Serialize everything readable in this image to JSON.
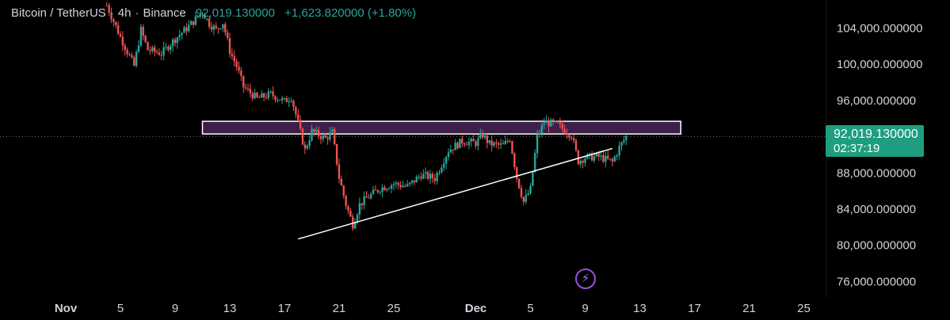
{
  "header": {
    "symbol": "Bitcoin / TetherUS",
    "interval": "4h",
    "exchange": "Binance",
    "last_price": "92,019.130000",
    "change": "+1,623.820000 (+1.80%)"
  },
  "price_tag": {
    "value": "92,019.130000",
    "countdown": "02:37:19"
  },
  "colors": {
    "up": "#26a69a",
    "down": "#ef5350",
    "zone_fill": "#3d1f4a",
    "zone_border": "#ffffff",
    "trendline": "#ffffff",
    "price_tag": "#1f9d80",
    "alert_icon": "#9c4fd7"
  },
  "chart_data": {
    "type": "candlestick",
    "y_axis_labels": [
      "104,000.000000",
      "100,000.000000",
      "96,000.000000",
      "88,000.000000",
      "84,000.000000",
      "80,000.000000",
      "76,000.000000"
    ],
    "y_axis_values": [
      104000,
      100000,
      96000,
      88000,
      84000,
      80000,
      76000
    ],
    "ylim": [
      74200,
      107100
    ],
    "x_axis_labels": [
      "Nov",
      "5",
      "9",
      "13",
      "17",
      "21",
      "25",
      "Dec",
      "5",
      "9",
      "13",
      "17",
      "21",
      "25"
    ],
    "x_axis_dates": [
      "2024-11-01",
      "2024-11-05",
      "2024-11-09",
      "2024-11-13",
      "2024-11-17",
      "2024-11-21",
      "2024-11-25",
      "2024-12-01",
      "2024-12-05",
      "2024-12-09",
      "2024-12-13",
      "2024-12-17",
      "2024-12-21",
      "2024-12-25"
    ],
    "last_price": 92019.13,
    "resistance_zone": {
      "start": "2024-11-11",
      "end": "2024-12-16",
      "low": 92300,
      "high": 93700
    },
    "trendline": {
      "start": {
        "date": "2024-11-18",
        "price": 80700
      },
      "end": {
        "date": "2024-12-11",
        "price": 90700
      }
    },
    "price_path": [
      [
        "2024-11-04",
        106500
      ],
      [
        "2024-11-05",
        103000
      ],
      [
        "2024-11-06",
        99800
      ],
      [
        "2024-11-06T12",
        103800
      ],
      [
        "2024-11-07",
        101600
      ],
      [
        "2024-11-08",
        101200
      ],
      [
        "2024-11-09",
        102800
      ],
      [
        "2024-11-10",
        104200
      ],
      [
        "2024-11-11",
        105800
      ],
      [
        "2024-11-11T12",
        104500
      ],
      [
        "2024-11-12",
        103800
      ],
      [
        "2024-11-12T12",
        104600
      ],
      [
        "2024-11-13",
        101500
      ],
      [
        "2024-11-13T12",
        99800
      ],
      [
        "2024-11-14",
        97500
      ],
      [
        "2024-11-15",
        96200
      ],
      [
        "2024-11-16",
        96700
      ],
      [
        "2024-11-17",
        95900
      ],
      [
        "2024-11-17T12",
        96400
      ],
      [
        "2024-11-18",
        93500
      ],
      [
        "2024-11-18T12",
        90500
      ],
      [
        "2024-11-19",
        92600
      ],
      [
        "2024-11-20",
        91800
      ],
      [
        "2024-11-20T12",
        92500
      ],
      [
        "2024-11-21",
        87500
      ],
      [
        "2024-11-21T12",
        84500
      ],
      [
        "2024-11-22",
        82300
      ],
      [
        "2024-11-22T12",
        84500
      ],
      [
        "2024-11-23",
        85200
      ],
      [
        "2024-11-24",
        86300
      ],
      [
        "2024-11-25",
        86800
      ],
      [
        "2024-11-26",
        86500
      ],
      [
        "2024-11-27",
        87800
      ],
      [
        "2024-11-28",
        87400
      ],
      [
        "2024-11-29",
        90500
      ],
      [
        "2024-11-30",
        91500
      ],
      [
        "2024-12-01",
        91300
      ],
      [
        "2024-12-01T12",
        92200
      ],
      [
        "2024-12-02",
        91200
      ],
      [
        "2024-12-03",
        91000
      ],
      [
        "2024-12-03T12",
        91800
      ],
      [
        "2024-12-04",
        87500
      ],
      [
        "2024-12-04T12",
        84800
      ],
      [
        "2024-12-05",
        86200
      ],
      [
        "2024-12-05T12",
        92000
      ],
      [
        "2024-12-06",
        93600
      ],
      [
        "2024-12-07",
        93300
      ],
      [
        "2024-12-07T12",
        92700
      ],
      [
        "2024-12-08",
        92200
      ],
      [
        "2024-12-08T12",
        89300
      ],
      [
        "2024-12-09",
        89700
      ],
      [
        "2024-12-10",
        89800
      ],
      [
        "2024-12-11",
        89200
      ],
      [
        "2024-12-11T12",
        90800
      ],
      [
        "2024-12-12",
        92019
      ]
    ]
  }
}
